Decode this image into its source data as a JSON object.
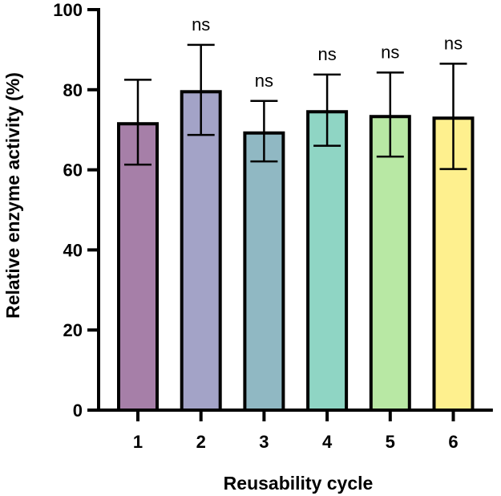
{
  "chart_data": {
    "type": "bar",
    "title": "",
    "xlabel": "Reusability cycle",
    "ylabel": "Relative enzyme activity (%)",
    "ylim": [
      0,
      100
    ],
    "yticks": [
      0,
      20,
      40,
      60,
      80,
      100
    ],
    "categories": [
      "1",
      "2",
      "3",
      "4",
      "5",
      "6"
    ],
    "values": [
      71.5,
      79.5,
      69.2,
      74.5,
      73.3,
      72.9
    ],
    "error_high": [
      82.5,
      91.2,
      77.2,
      83.8,
      84.3,
      86.5
    ],
    "error_low": [
      61.3,
      68.7,
      62.1,
      66.0,
      63.3,
      60.2
    ],
    "annotations": [
      "",
      "ns",
      "ns",
      "ns",
      "ns",
      "ns"
    ],
    "colors": [
      "#a67fa8",
      "#a3a3c7",
      "#90b8c3",
      "#8fd5c4",
      "#b8e8a4",
      "#fef08e"
    ]
  }
}
